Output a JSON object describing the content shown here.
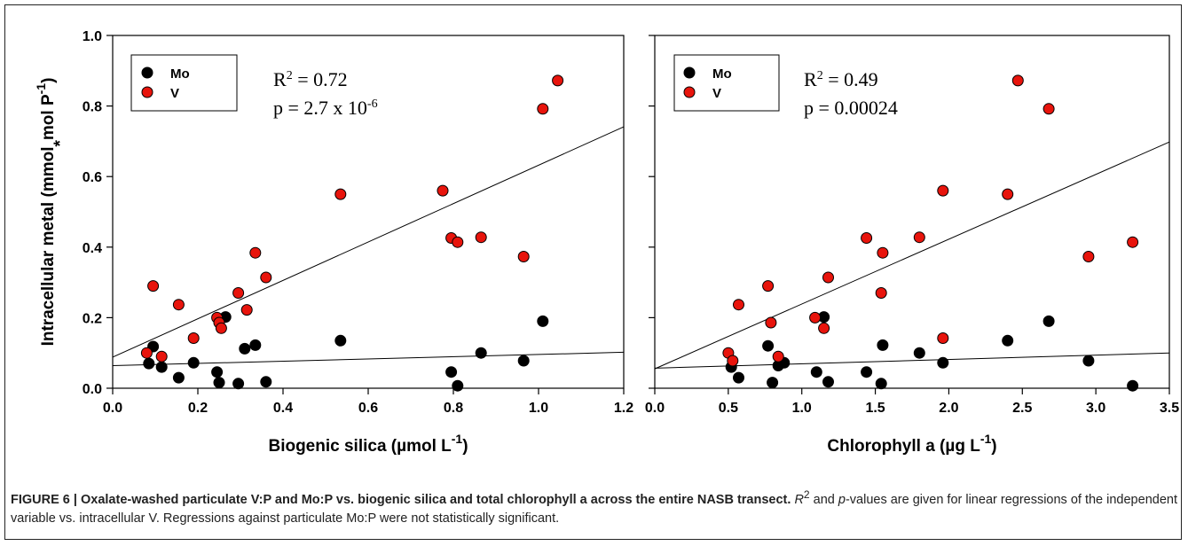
{
  "chart_data": [
    {
      "type": "scatter",
      "xlabel_text": "Biogenic silica (µmol L",
      "xlabel_sup": "-1",
      "xlabel_close": ")",
      "ylabel_text": "Intracellular metal (mmol",
      "ylabel_star": "*",
      "ylabel_mid": "mol P",
      "ylabel_sup": "-1",
      "ylabel_close": ")",
      "xlim": [
        0.0,
        1.2
      ],
      "ylim": [
        0.0,
        1.0
      ],
      "xticks": [
        "0.0",
        "0.2",
        "0.4",
        "0.6",
        "0.8",
        "1.0",
        "1.2"
      ],
      "yticks": [
        "0.0",
        "0.2",
        "0.4",
        "0.6",
        "0.8",
        "1.0"
      ],
      "legend_position": "top-left",
      "annotation": {
        "r2_label": "R",
        "r2_sup": "2",
        "r2_value": " = 0.72",
        "p_text": "p = 2.7 x 10",
        "p_sup": "-6"
      },
      "series": [
        {
          "name": "Mo",
          "color": "#000000",
          "x": [
            0.085,
            0.095,
            0.115,
            0.155,
            0.19,
            0.245,
            0.25,
            0.265,
            0.295,
            0.31,
            0.335,
            0.36,
            0.535,
            0.795,
            0.81,
            0.865,
            0.965,
            1.01
          ],
          "y": [
            0.07,
            0.118,
            0.06,
            0.03,
            0.072,
            0.046,
            0.016,
            0.202,
            0.013,
            0.112,
            0.122,
            0.018,
            0.135,
            0.046,
            0.007,
            0.1,
            0.078,
            0.19
          ]
        },
        {
          "name": "V",
          "color": "#e8140c",
          "x": [
            0.08,
            0.095,
            0.115,
            0.155,
            0.19,
            0.245,
            0.25,
            0.255,
            0.295,
            0.315,
            0.335,
            0.36,
            0.535,
            0.775,
            0.795,
            0.81,
            0.865,
            0.965,
            1.01,
            1.045
          ],
          "y": [
            0.1,
            0.29,
            0.09,
            0.237,
            0.142,
            0.2,
            0.186,
            0.17,
            0.27,
            0.222,
            0.384,
            0.314,
            0.55,
            0.56,
            0.426,
            0.414,
            0.428,
            0.373,
            0.792,
            0.872
          ]
        }
      ],
      "fits": [
        {
          "for": "V",
          "x": [
            0.0,
            1.2
          ],
          "y": [
            0.088,
            0.741
          ]
        },
        {
          "for": "Mo",
          "x": [
            0.0,
            1.2
          ],
          "y": [
            0.064,
            0.102
          ]
        }
      ]
    },
    {
      "type": "scatter",
      "xlabel_text": "Chlorophyll a (µg L",
      "xlabel_sup": "-1",
      "xlabel_close": ")",
      "xlim": [
        0.0,
        3.5
      ],
      "ylim": [
        0.0,
        1.0
      ],
      "xticks": [
        "0.0",
        "0.5",
        "1.0",
        "1.5",
        "2.0",
        "2.5",
        "3.0",
        "3.5"
      ],
      "legend_position": "top-left",
      "annotation": {
        "r2_label": "R",
        "r2_sup": "2",
        "r2_value": " = 0.49",
        "p_text": "p = 0.00024",
        "p_sup": ""
      },
      "series": [
        {
          "name": "Mo",
          "color": "#000000",
          "x": [
            0.52,
            0.57,
            0.77,
            0.8,
            0.84,
            0.88,
            1.1,
            1.15,
            1.18,
            1.44,
            1.54,
            1.55,
            1.8,
            1.96,
            2.4,
            2.68,
            2.95,
            3.25
          ],
          "y": [
            0.06,
            0.03,
            0.12,
            0.016,
            0.064,
            0.072,
            0.046,
            0.202,
            0.018,
            0.046,
            0.013,
            0.122,
            0.1,
            0.072,
            0.135,
            0.19,
            0.078,
            0.007
          ]
        },
        {
          "name": "V",
          "color": "#e8140c",
          "x": [
            0.5,
            0.53,
            0.57,
            0.77,
            0.79,
            0.84,
            1.09,
            1.15,
            1.18,
            1.44,
            1.54,
            1.55,
            1.8,
            1.96,
            1.96,
            2.4,
            2.47,
            2.68,
            2.95,
            3.25
          ],
          "y": [
            0.1,
            0.078,
            0.237,
            0.29,
            0.186,
            0.09,
            0.2,
            0.17,
            0.314,
            0.426,
            0.27,
            0.384,
            0.428,
            0.142,
            0.56,
            0.55,
            0.872,
            0.792,
            0.373,
            0.414
          ]
        }
      ],
      "fits": [
        {
          "for": "V",
          "x": [
            0.0,
            3.5
          ],
          "y": [
            0.055,
            0.698
          ]
        },
        {
          "for": "Mo",
          "x": [
            0.0,
            3.5
          ],
          "y": [
            0.057,
            0.1
          ]
        }
      ]
    }
  ],
  "caption": {
    "head": "FIGURE 6 | Oxalate-washed particulate V:P and Mo:P vs. biogenic silica and total chlorophyll a across the entire NASB transect.",
    "r2_symbol": "R",
    "r2_sup": "2",
    "and_text": " and ",
    "p_symbol": "p",
    "body": "-values are given for linear regressions of the independent variable vs. intracellular V. Regressions against particulate Mo:P were not statistically significant."
  }
}
